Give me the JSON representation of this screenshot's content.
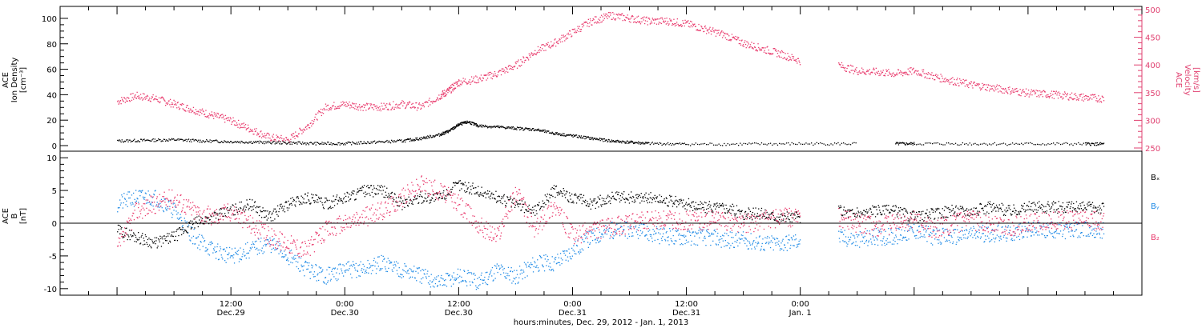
{
  "colors": {
    "black": "#000000",
    "pink": "#e8386b",
    "blue": "#1e8ae6",
    "axis_pink": "#e04070"
  },
  "chart_data": [
    {
      "type": "scatter",
      "panel": "top",
      "ylabel_left": [
        "ACE",
        "Ion Density",
        "[cm⁻³]"
      ],
      "ylabel_right": [
        "ACE",
        "Velocity",
        "[km/s]"
      ],
      "ylim_left": [
        0,
        105
      ],
      "ylim_right": [
        250,
        500
      ],
      "yticks_left": [
        "0",
        "20",
        "40",
        "60",
        "80",
        "100"
      ],
      "yticks_right": [
        "250",
        "300",
        "350",
        "400",
        "450",
        "500"
      ],
      "series": [
        {
          "color": "black",
          "axis": "left",
          "x_hours": [
            0,
            3,
            6,
            9,
            12,
            15,
            18,
            21,
            24,
            27,
            30,
            32,
            34,
            35,
            36,
            37,
            38,
            40,
            42,
            44,
            46,
            48,
            50,
            52,
            54,
            56,
            60,
            66,
            72,
            78,
            80,
            82,
            84,
            90,
            96,
            102,
            104
          ],
          "values": [
            4,
            4.5,
            5,
            4,
            3.5,
            3,
            2.5,
            2,
            2,
            3,
            4,
            6,
            9,
            12,
            17,
            19,
            16,
            15,
            14,
            13,
            10,
            8,
            6,
            4,
            3,
            2,
            1.5,
            1.5,
            1.8,
            1.8,
            null,
            1.8,
            1.8,
            1.8,
            1.7,
            1.6,
            1.6
          ]
        },
        {
          "color": "pink",
          "axis": "right",
          "x_hours": [
            0,
            2,
            4,
            6,
            8,
            10,
            12,
            14,
            16,
            18,
            20,
            22,
            24,
            26,
            28,
            30,
            32,
            34,
            35,
            36,
            38,
            40,
            42,
            44,
            46,
            48,
            50,
            52,
            54,
            56,
            58,
            60,
            62,
            64,
            66,
            68,
            70,
            72,
            74,
            76,
            78,
            80,
            82,
            84,
            86,
            88,
            90,
            92,
            94,
            96,
            98,
            100,
            102,
            104
          ],
          "values": [
            335,
            345,
            340,
            330,
            320,
            310,
            300,
            285,
            270,
            265,
            290,
            325,
            330,
            325,
            325,
            330,
            325,
            345,
            355,
            370,
            375,
            385,
            400,
            425,
            440,
            460,
            480,
            490,
            485,
            480,
            480,
            475,
            465,
            455,
            440,
            430,
            420,
            408,
            null,
            400,
            390,
            388,
            385,
            390,
            380,
            372,
            365,
            360,
            355,
            350,
            348,
            345,
            342,
            340
          ]
        }
      ]
    },
    {
      "type": "scatter",
      "panel": "bottom",
      "ylabel": [
        "ACE",
        "B",
        "[nT]"
      ],
      "ylim": [
        -11,
        11
      ],
      "yticks": [
        "-10",
        "-5",
        "0",
        "5",
        "10"
      ],
      "zero_line": true,
      "legend": [
        "Bₓ",
        "Bᵧ",
        "B₂"
      ],
      "series": [
        {
          "name": "Bₓ",
          "color": "black",
          "x_hours": [
            0,
            2,
            4,
            6,
            8,
            10,
            12,
            14,
            16,
            18,
            20,
            22,
            24,
            26,
            28,
            30,
            32,
            34,
            36,
            38,
            40,
            42,
            44,
            46,
            48,
            50,
            52,
            54,
            56,
            58,
            60,
            62,
            64,
            66,
            68,
            70,
            72,
            74,
            76,
            78,
            80,
            82,
            84,
            86,
            88,
            90,
            92,
            94,
            96,
            98,
            100,
            102,
            104
          ],
          "values": [
            -1,
            -2,
            -3,
            -2,
            0,
            1,
            2,
            3,
            1,
            3,
            4,
            3,
            4,
            5,
            5,
            3,
            4,
            4,
            6,
            5,
            4,
            3,
            2,
            5,
            4,
            3,
            4,
            4,
            4,
            3.5,
            3,
            2.5,
            2.5,
            1.5,
            1.5,
            1,
            1,
            null,
            2,
            1.5,
            2,
            2,
            1,
            1.5,
            2,
            2,
            2.5,
            2,
            2.5,
            2.5,
            2.5,
            2.5,
            2.5
          ]
        },
        {
          "name": "Bᵧ",
          "color": "blue",
          "x_hours": [
            0,
            2,
            4,
            6,
            8,
            10,
            12,
            14,
            16,
            18,
            20,
            22,
            24,
            26,
            28,
            30,
            32,
            34,
            36,
            38,
            40,
            42,
            44,
            46,
            48,
            50,
            52,
            54,
            56,
            58,
            60,
            62,
            64,
            66,
            68,
            70,
            72,
            74,
            76,
            78,
            80,
            82,
            84,
            86,
            88,
            90,
            92,
            94,
            96,
            98,
            100,
            102,
            104
          ],
          "values": [
            3,
            4,
            4,
            2,
            -2,
            -4,
            -5,
            -4,
            -3,
            -5,
            -7,
            -8,
            -7,
            -7,
            -6,
            -7,
            -8,
            -9,
            -8,
            -9,
            -7,
            -8,
            -6,
            -6,
            -4,
            -2,
            -1,
            -1,
            -1.5,
            -2,
            -2,
            -2,
            -2.5,
            -2.5,
            -3,
            -3,
            -2.5,
            null,
            -2,
            -2.5,
            -2,
            -2,
            -1,
            -2,
            -2,
            -1.5,
            -1.5,
            -1.5,
            -1,
            -1,
            -1,
            -1,
            -1
          ]
        },
        {
          "name": "B₂",
          "color": "pink",
          "x_hours": [
            0,
            2,
            4,
            6,
            8,
            10,
            12,
            14,
            16,
            18,
            20,
            22,
            24,
            26,
            28,
            30,
            32,
            34,
            36,
            38,
            40,
            42,
            44,
            46,
            48,
            50,
            52,
            54,
            56,
            58,
            60,
            62,
            64,
            66,
            68,
            70,
            72,
            74,
            76,
            78,
            80,
            82,
            84,
            86,
            88,
            90,
            92,
            94,
            96,
            98,
            100,
            102,
            104
          ],
          "values": [
            -4,
            2,
            3,
            4,
            2,
            1,
            2,
            0,
            -2,
            -3,
            -4,
            -1,
            0,
            1,
            2,
            4,
            6,
            5,
            3,
            0,
            -2,
            5,
            -1,
            3,
            -2,
            -1,
            -0.5,
            0,
            0.5,
            0.5,
            0.5,
            0.5,
            0.5,
            0,
            0.5,
            1,
            1,
            null,
            1,
            0,
            -0.5,
            0,
            0.5,
            -1,
            0,
            0.5,
            0,
            -0.5,
            0,
            0.5,
            0.5,
            0.5,
            0.5
          ]
        }
      ]
    }
  ],
  "x_axis": {
    "range_hours": [
      -6,
      108
    ],
    "major_ticks": [
      {
        "hour": 12,
        "time": "12:00",
        "date": "Dec.29"
      },
      {
        "hour": 24,
        "time": "0:00",
        "date": "Dec.30"
      },
      {
        "hour": 36,
        "time": "12:00",
        "date": "Dec.30"
      },
      {
        "hour": 48,
        "time": "0:00",
        "date": "Dec.31"
      },
      {
        "hour": 60,
        "time": "12:00",
        "date": "Dec.31"
      },
      {
        "hour": 72,
        "time": "0:00",
        "date": "Jan. 1"
      }
    ],
    "label": "hours:minutes, Dec. 29, 2012 - Jan.  1, 2013"
  }
}
